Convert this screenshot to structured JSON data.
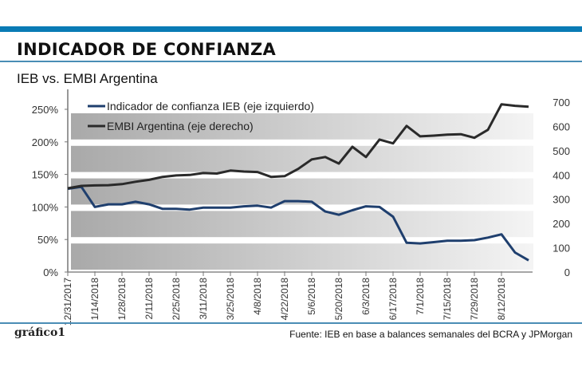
{
  "header": {
    "title": "INDICADOR DE CONFIANZA",
    "subtitle": "IEB vs. EMBI Argentina"
  },
  "footer": {
    "brand": "gráfico1",
    "source": "Fuente: IEB en base a balances semanales del BCRA y JPMorgan"
  },
  "chart_data": {
    "type": "line",
    "title": "",
    "grid": true,
    "legend_position": "top-left",
    "x_tick_labels": [
      "12/31/2017",
      "1/14/2018",
      "1/28/2018",
      "2/11/2018",
      "2/25/2018",
      "3/11/2018",
      "3/25/2018",
      "4/8/2018",
      "4/22/2018",
      "5/6/2018",
      "5/20/2018",
      "6/3/2018",
      "6/17/2018",
      "7/1/2018",
      "7/15/2018",
      "7/29/2018",
      "8/12/2018"
    ],
    "x_start": "12/31/2017",
    "x_frequency": "weekly",
    "left_axis": {
      "ylim": [
        0,
        250
      ],
      "ticks": [
        "0%",
        "50%",
        "100%",
        "150%",
        "200%",
        "250%"
      ],
      "unit": "%"
    },
    "right_axis": {
      "ylim": [
        0,
        700
      ],
      "ticks": [
        "0",
        "100",
        "200",
        "300",
        "400",
        "500",
        "600",
        "700"
      ]
    },
    "series": [
      {
        "name": "Indicador de confianza IEB (eje izquierdo)",
        "axis": "left",
        "color": "#1f3f6e",
        "values": [
          128,
          131,
          100,
          104,
          104,
          108,
          104,
          97,
          97,
          96,
          99,
          99,
          99,
          101,
          102,
          99,
          109,
          109,
          108,
          93,
          88,
          95,
          101,
          100,
          85,
          45,
          44,
          46,
          48,
          48,
          49,
          53,
          58,
          30,
          18
        ]
      },
      {
        "name": "EMBI Argentina (eje derecho)",
        "axis": "right",
        "color": "#2a2a2a",
        "values": [
          345,
          355,
          357,
          358,
          362,
          372,
          380,
          392,
          398,
          400,
          408,
          406,
          418,
          414,
          412,
          392,
          395,
          425,
          464,
          474,
          447,
          516,
          474,
          546,
          530,
          602,
          559,
          562,
          566,
          568,
          553,
          586,
          691,
          685,
          681
        ]
      }
    ]
  }
}
